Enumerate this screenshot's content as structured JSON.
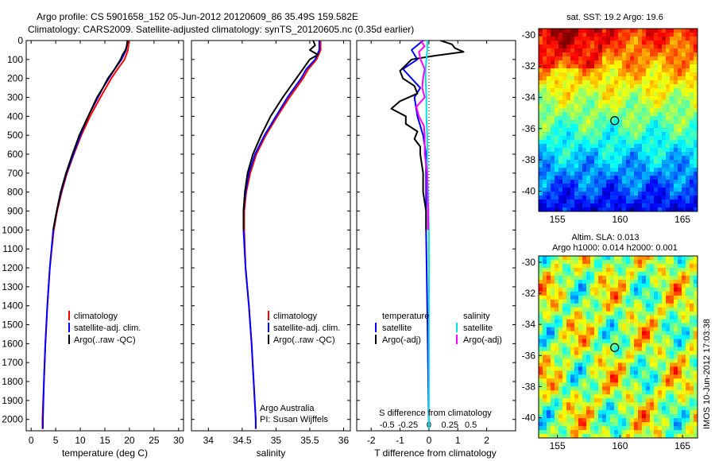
{
  "header": {
    "line1": "Argo profile: CS 5901658_152 05-Jun-2012 20120609_86 35.49S 159.582E",
    "line2": "Climatology: CARS2009. Satellite-adjusted climatology: synTS_20120605.nc (0.35d earlier)"
  },
  "chart_data": [
    {
      "type": "line",
      "panel": "temperature",
      "xlabel": "temperature (deg C)",
      "ylabel": "",
      "xlim": [
        -1,
        31
      ],
      "ylim": [
        0,
        2060
      ],
      "xticks": [
        0,
        5,
        10,
        15,
        20,
        25,
        30
      ],
      "yticks": [
        0,
        100,
        200,
        300,
        400,
        500,
        600,
        700,
        800,
        900,
        1000,
        1100,
        1200,
        1300,
        1400,
        1500,
        1600,
        1700,
        1800,
        1900,
        2000
      ],
      "legend": {
        "position": "lower-center",
        "entries": [
          "climatology",
          "satellite-adj. clim.",
          "Argo(..raw -QC)"
        ]
      },
      "series": [
        {
          "name": "climatology",
          "color": "#ff0000",
          "depth": [
            0,
            50,
            100,
            150,
            200,
            250,
            300,
            400,
            500,
            600,
            700,
            800,
            900,
            1000,
            1200,
            1400,
            1600,
            1800,
            2000,
            2050
          ],
          "values": [
            19.9,
            19.7,
            19.0,
            17.6,
            16.3,
            15.2,
            14.1,
            12.0,
            10.2,
            8.7,
            7.3,
            6.2,
            5.3,
            4.6,
            3.8,
            3.3,
            2.9,
            2.6,
            2.3,
            2.3
          ]
        },
        {
          "name": "satellite-adj. clim.",
          "color": "#0000ff",
          "depth": [
            0,
            50,
            100,
            150,
            200,
            250,
            300,
            400,
            500,
            600,
            700,
            800,
            900,
            1000,
            1200,
            1400,
            1600,
            1800,
            2000,
            2050
          ],
          "values": [
            19.6,
            19.3,
            18.4,
            17.0,
            15.8,
            14.6,
            13.6,
            11.6,
            10.0,
            8.6,
            7.2,
            6.1,
            5.2,
            4.5,
            3.8,
            3.3,
            2.9,
            2.6,
            2.4,
            2.4
          ]
        },
        {
          "name": "Argo(..raw -QC)",
          "color": "#000000",
          "depth": [
            0,
            25,
            50,
            75,
            100,
            150,
            200,
            250,
            300,
            400,
            500,
            600,
            700,
            800,
            900,
            1000
          ],
          "values": [
            19.6,
            19.5,
            19.2,
            18.6,
            18.2,
            17.0,
            15.6,
            14.6,
            13.4,
            11.6,
            9.8,
            8.4,
            7.1,
            6.0,
            5.2,
            4.5
          ]
        }
      ]
    },
    {
      "type": "line",
      "panel": "salinity",
      "xlabel": "salinity",
      "ylabel": "",
      "xlim": [
        33.75,
        36.1
      ],
      "ylim": [
        0,
        2060
      ],
      "xticks": [
        34,
        34.5,
        35,
        35.5,
        36
      ],
      "legend": {
        "position": "lower-center",
        "entries": [
          "climatology",
          "satellite-adj. clim.",
          "Argo(..raw -QC)"
        ]
      },
      "series": [
        {
          "name": "climatology",
          "color": "#ff0000",
          "depth": [
            0,
            50,
            100,
            150,
            200,
            300,
            400,
            500,
            600,
            700,
            800,
            900,
            1000,
            1200,
            1400,
            1600,
            1800,
            2000,
            2050
          ],
          "values": [
            35.66,
            35.66,
            35.6,
            35.48,
            35.4,
            35.2,
            35.02,
            34.85,
            34.71,
            34.62,
            34.56,
            34.53,
            34.53,
            34.55,
            34.6,
            34.64,
            34.67,
            34.7,
            34.7
          ]
        },
        {
          "name": "satellite-adj. clim.",
          "color": "#0000ff",
          "depth": [
            0,
            50,
            100,
            150,
            200,
            300,
            400,
            500,
            600,
            700,
            800,
            900,
            1000,
            1200,
            1400,
            1600,
            1800,
            2000,
            2050
          ],
          "values": [
            35.64,
            35.64,
            35.58,
            35.45,
            35.37,
            35.17,
            35.0,
            34.83,
            34.69,
            34.6,
            34.55,
            34.52,
            34.52,
            34.55,
            34.6,
            34.64,
            34.67,
            34.7,
            34.7
          ]
        },
        {
          "name": "Argo(..raw -QC)",
          "color": "#000000",
          "depth": [
            0,
            25,
            50,
            75,
            100,
            150,
            200,
            250,
            300,
            400,
            500,
            600,
            700,
            800,
            900,
            1000
          ],
          "values": [
            35.55,
            35.58,
            35.5,
            35.62,
            35.5,
            35.4,
            35.3,
            35.2,
            35.1,
            34.92,
            34.78,
            34.66,
            34.58,
            34.54,
            34.52,
            34.52
          ]
        }
      ],
      "annotations": [
        "Argo Australia",
        "PI: Susan Wijffels"
      ]
    },
    {
      "type": "line",
      "panel": "difference",
      "xlabel": "T difference from climatology",
      "xlabel_top": "S difference from climatology",
      "xlim": [
        -2.5,
        3
      ],
      "ylim": [
        0,
        2060
      ],
      "xticks": [
        -2,
        -1,
        0,
        1,
        2
      ],
      "xticks_s": [
        -0.5,
        -0.25,
        0,
        0.25,
        0.5
      ],
      "legend": {
        "position": "lower-center",
        "headers": [
          "temperature",
          "salinity"
        ],
        "entries": [
          "satellite",
          "Argo(-adj)",
          "satellite",
          "Argo(-adj)"
        ]
      },
      "series": [
        {
          "name": "satellite",
          "group": "temperature",
          "color": "#0000ff",
          "depth": [
            0,
            50,
            100,
            150,
            200,
            250,
            300,
            400,
            500,
            600,
            700,
            800,
            1000,
            1500,
            2050
          ],
          "values": [
            -0.2,
            -0.6,
            -0.4,
            -0.9,
            -0.6,
            -0.3,
            -0.5,
            -0.4,
            -0.2,
            -0.1,
            -0.1,
            -0.1,
            -0.1,
            -0.05,
            0
          ]
        },
        {
          "name": "Argo(-adj)",
          "group": "temperature",
          "color": "#000000",
          "depth": [
            0,
            20,
            40,
            60,
            80,
            100,
            130,
            160,
            200,
            240,
            280,
            320,
            360,
            400,
            440,
            480,
            520,
            560,
            600,
            700,
            800,
            900,
            1000
          ],
          "values": [
            0.4,
            0.8,
            0.9,
            1.2,
            0.2,
            -0.6,
            -0.8,
            -1.0,
            -0.9,
            -0.5,
            -0.4,
            -1.0,
            -1.3,
            -0.8,
            -0.8,
            -0.4,
            -0.5,
            -0.3,
            -0.3,
            -0.2,
            -0.2,
            -0.1,
            -0.1
          ]
        },
        {
          "name": "satellite",
          "group": "salinity",
          "color": "#00e0e0",
          "depth": [
            0,
            50,
            100,
            150,
            200,
            300,
            400,
            500,
            600,
            700,
            800,
            1000,
            1500,
            2050
          ],
          "values": [
            -0.02,
            -0.02,
            -0.03,
            -0.04,
            -0.04,
            -0.03,
            -0.03,
            -0.02,
            -0.02,
            -0.02,
            -0.01,
            0,
            0,
            0
          ]
        },
        {
          "name": "Argo(-adj)",
          "group": "salinity",
          "color": "#ff00ff",
          "depth": [
            0,
            30,
            60,
            100,
            150,
            200,
            250,
            300,
            350,
            400,
            450,
            500,
            550,
            600,
            700,
            800,
            900,
            1000
          ],
          "values": [
            -0.1,
            -0.05,
            -0.12,
            -0.1,
            -0.05,
            -0.07,
            -0.08,
            -0.05,
            -0.15,
            -0.12,
            -0.06,
            -0.05,
            -0.05,
            -0.05,
            -0.02,
            -0.02,
            -0.01,
            -0.01
          ]
        }
      ]
    },
    {
      "type": "heatmap",
      "panel": "sst-map",
      "title": "sat. SST: 19.2  Argo: 19.6",
      "xlim": [
        153.5,
        166.2
      ],
      "ylim": [
        -41.3,
        -29.6
      ],
      "xticks": [
        155,
        160,
        165
      ],
      "yticks": [
        -30,
        -32,
        -34,
        -36,
        -38,
        -40
      ],
      "marker": {
        "lon": 159.58,
        "lat": -35.49
      }
    },
    {
      "type": "heatmap",
      "panel": "sla-map",
      "title": "Altim. SLA: 0.013",
      "subtitle": "Argo h1000: 0.014 h2000: 0.001",
      "xlim": [
        153.5,
        166.2
      ],
      "ylim": [
        -41.3,
        -29.6
      ],
      "xticks": [
        155,
        160,
        165
      ],
      "yticks": [
        -30,
        -32,
        -34,
        -36,
        -38,
        -40
      ],
      "marker": {
        "lon": 159.58,
        "lat": -35.49
      }
    }
  ],
  "footer": {
    "stamp": "IMOS 10-Jun-2012 17:03:38"
  }
}
